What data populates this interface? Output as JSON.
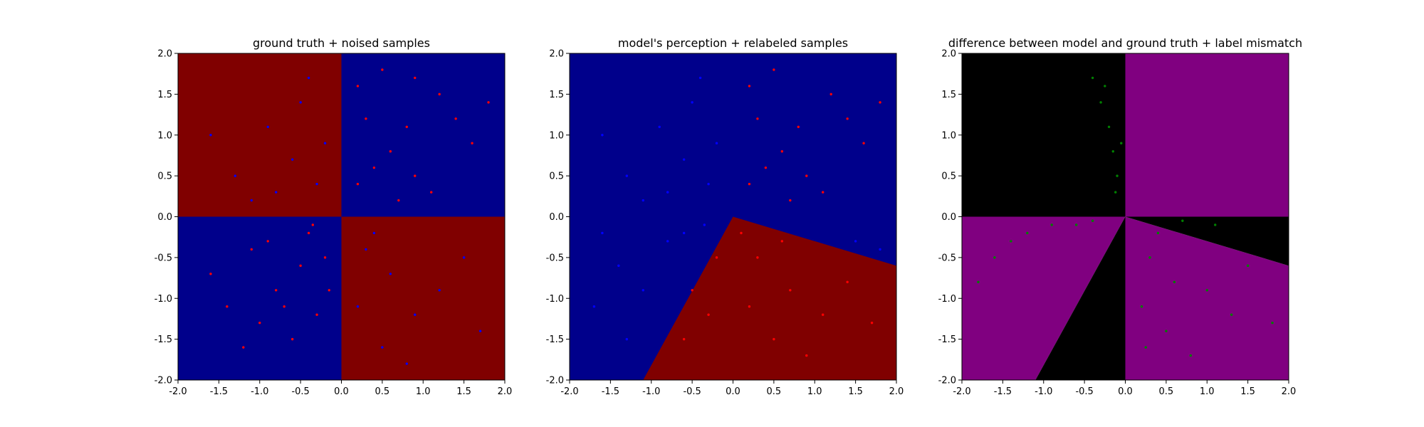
{
  "colors": {
    "dark_red": "#800000",
    "dark_blue": "#00008b",
    "black": "#000000",
    "purple": "#800080",
    "red_point": "#ff0000",
    "blue_point": "#0000ff",
    "green_point": "#008000"
  },
  "chart_data": [
    {
      "type": "scatter",
      "title": "ground truth + noised samples",
      "xlim": [
        -2.0,
        2.0
      ],
      "ylim": [
        -2.0,
        2.0
      ],
      "xticks": [
        -2.0,
        -1.5,
        -1.0,
        -0.5,
        0.0,
        0.5,
        1.0,
        1.5,
        2.0
      ],
      "yticks": [
        -2.0,
        -1.5,
        -1.0,
        -0.5,
        0.0,
        0.5,
        1.0,
        1.5,
        2.0
      ],
      "tick_labels": [
        "-2.0",
        "-1.5",
        "-1.0",
        "-0.5",
        "0.0",
        "0.5",
        "1.0",
        "1.5",
        "2.0"
      ],
      "background_regions": [
        {
          "polygon": [
            [
              -2,
              0
            ],
            [
              0,
              0
            ],
            [
              0,
              2
            ],
            [
              -2,
              2
            ]
          ],
          "color": "dark_red"
        },
        {
          "polygon": [
            [
              0,
              0
            ],
            [
              2,
              0
            ],
            [
              2,
              2
            ],
            [
              0,
              2
            ]
          ],
          "color": "dark_blue"
        },
        {
          "polygon": [
            [
              -2,
              -2
            ],
            [
              0,
              -2
            ],
            [
              0,
              0
            ],
            [
              -2,
              0
            ]
          ],
          "color": "dark_blue"
        },
        {
          "polygon": [
            [
              0,
              -2
            ],
            [
              2,
              -2
            ],
            [
              2,
              0
            ],
            [
              0,
              0
            ]
          ],
          "color": "dark_red"
        }
      ],
      "series": [
        {
          "color": "red_point",
          "points": [
            [
              0.3,
              1.2
            ],
            [
              0.6,
              0.8
            ],
            [
              0.9,
              0.5
            ],
            [
              1.2,
              1.5
            ],
            [
              0.2,
              0.4
            ],
            [
              0.5,
              1.8
            ],
            [
              1.6,
              0.9
            ],
            [
              0.8,
              1.1
            ],
            [
              1.1,
              0.3
            ],
            [
              0.4,
              0.6
            ],
            [
              1.4,
              1.2
            ],
            [
              0.7,
              0.2
            ],
            [
              0.2,
              1.6
            ],
            [
              1.8,
              1.4
            ],
            [
              0.9,
              1.7
            ],
            [
              -0.5,
              -0.6
            ],
            [
              -0.8,
              -0.9
            ],
            [
              -1.1,
              -0.4
            ],
            [
              -0.3,
              -1.2
            ],
            [
              -0.6,
              -1.5
            ],
            [
              -1.4,
              -1.1
            ],
            [
              -0.9,
              -0.3
            ],
            [
              -0.2,
              -0.5
            ],
            [
              -1.6,
              -0.7
            ],
            [
              -0.4,
              -0.2
            ],
            [
              -0.7,
              -1.1
            ],
            [
              -1.2,
              -1.6
            ],
            [
              -0.35,
              -0.1
            ],
            [
              -0.15,
              -0.9
            ],
            [
              -1.0,
              -1.3
            ]
          ]
        },
        {
          "color": "blue_point",
          "points": [
            [
              -0.6,
              0.7
            ],
            [
              -0.9,
              1.1
            ],
            [
              -0.3,
              0.4
            ],
            [
              -1.3,
              0.5
            ],
            [
              -0.5,
              1.4
            ],
            [
              -1.1,
              0.2
            ],
            [
              -0.2,
              0.9
            ],
            [
              -1.6,
              1.0
            ],
            [
              -0.8,
              0.3
            ],
            [
              -0.4,
              1.7
            ],
            [
              0.6,
              -0.7
            ],
            [
              0.9,
              -1.2
            ],
            [
              0.3,
              -0.4
            ],
            [
              1.2,
              -0.9
            ],
            [
              0.5,
              -1.6
            ],
            [
              1.5,
              -0.5
            ],
            [
              0.2,
              -1.1
            ],
            [
              0.8,
              -1.8
            ],
            [
              1.7,
              -1.4
            ],
            [
              0.4,
              -0.2
            ]
          ]
        }
      ]
    },
    {
      "type": "scatter",
      "title": "model's perception + relabeled samples",
      "xlim": [
        -2.0,
        2.0
      ],
      "ylim": [
        -2.0,
        2.0
      ],
      "xticks": [
        -2.0,
        -1.5,
        -1.0,
        -0.5,
        0.0,
        0.5,
        1.0,
        1.5,
        2.0
      ],
      "yticks": [
        -2.0,
        -1.5,
        -1.0,
        -0.5,
        0.0,
        0.5,
        1.0,
        1.5,
        2.0
      ],
      "tick_labels": [
        "-2.0",
        "-1.5",
        "-1.0",
        "-0.5",
        "0.0",
        "0.5",
        "1.0",
        "1.5",
        "2.0"
      ],
      "background_regions": [
        {
          "polygon": [
            [
              -2,
              -2
            ],
            [
              2,
              -2
            ],
            [
              2,
              2
            ],
            [
              -2,
              2
            ]
          ],
          "color": "dark_blue"
        },
        {
          "polygon": [
            [
              0,
              0
            ],
            [
              2,
              -0.6
            ],
            [
              2,
              -2
            ],
            [
              -1.1,
              -2
            ]
          ],
          "color": "dark_red"
        }
      ],
      "series": [
        {
          "color": "red_point",
          "points": [
            [
              0.3,
              1.2
            ],
            [
              0.6,
              0.8
            ],
            [
              0.9,
              0.5
            ],
            [
              1.2,
              1.5
            ],
            [
              0.2,
              0.4
            ],
            [
              0.5,
              1.8
            ],
            [
              1.6,
              0.9
            ],
            [
              0.8,
              1.1
            ],
            [
              1.1,
              0.3
            ],
            [
              0.4,
              0.6
            ],
            [
              1.4,
              1.2
            ],
            [
              0.7,
              0.2
            ],
            [
              0.2,
              1.6
            ],
            [
              1.8,
              1.4
            ],
            [
              0.3,
              -0.5
            ],
            [
              0.7,
              -0.9
            ],
            [
              1.1,
              -1.2
            ],
            [
              0.5,
              -1.5
            ],
            [
              1.4,
              -0.8
            ],
            [
              0.2,
              -1.1
            ],
            [
              0.9,
              -1.7
            ],
            [
              -0.3,
              -1.2
            ],
            [
              -0.5,
              -0.9
            ],
            [
              -0.2,
              -0.5
            ],
            [
              0.6,
              -0.3
            ],
            [
              1.7,
              -1.3
            ],
            [
              -0.6,
              -1.5
            ],
            [
              0.1,
              -0.2
            ]
          ]
        },
        {
          "color": "blue_point",
          "points": [
            [
              -0.6,
              0.7
            ],
            [
              -0.9,
              1.1
            ],
            [
              -0.3,
              0.4
            ],
            [
              -1.3,
              0.5
            ],
            [
              -0.5,
              1.4
            ],
            [
              -1.1,
              0.2
            ],
            [
              -0.2,
              0.9
            ],
            [
              -1.6,
              1.0
            ],
            [
              -0.8,
              0.3
            ],
            [
              -0.4,
              1.7
            ],
            [
              -1.4,
              -0.6
            ],
            [
              -1.1,
              -0.9
            ],
            [
              -0.8,
              -0.3
            ],
            [
              -1.6,
              -0.2
            ],
            [
              -1.7,
              -1.1
            ],
            [
              -0.6,
              -0.2
            ],
            [
              -1.3,
              -1.5
            ],
            [
              1.5,
              -0.3
            ],
            [
              1.8,
              -0.4
            ],
            [
              -0.35,
              -0.1
            ]
          ]
        }
      ]
    },
    {
      "type": "scatter",
      "title": "difference between model and ground truth + label mismatch",
      "xlim": [
        -2.0,
        2.0
      ],
      "ylim": [
        -2.0,
        2.0
      ],
      "xticks": [
        -2.0,
        -1.5,
        -1.0,
        -0.5,
        0.0,
        0.5,
        1.0,
        1.5,
        2.0
      ],
      "yticks": [
        -2.0,
        -1.5,
        -1.0,
        -0.5,
        0.0,
        0.5,
        1.0,
        1.5,
        2.0
      ],
      "tick_labels": [
        "-2.0",
        "-1.5",
        "-1.0",
        "-0.5",
        "0.0",
        "0.5",
        "1.0",
        "1.5",
        "2.0"
      ],
      "background_regions": [
        {
          "polygon": [
            [
              -2,
              0
            ],
            [
              0,
              0
            ],
            [
              0,
              2
            ],
            [
              -2,
              2
            ]
          ],
          "color": "black"
        },
        {
          "polygon": [
            [
              0,
              0
            ],
            [
              2,
              0
            ],
            [
              2,
              2
            ],
            [
              0,
              2
            ]
          ],
          "color": "purple"
        },
        {
          "polygon": [
            [
              -2,
              -2
            ],
            [
              -1.1,
              -2
            ],
            [
              0,
              0
            ],
            [
              -2,
              0
            ]
          ],
          "color": "purple"
        },
        {
          "polygon": [
            [
              -1.1,
              -2
            ],
            [
              0,
              -2
            ],
            [
              0,
              0
            ]
          ],
          "color": "black"
        },
        {
          "polygon": [
            [
              0,
              -2
            ],
            [
              2,
              -2
            ],
            [
              2,
              -0.6
            ],
            [
              0,
              0
            ]
          ],
          "color": "purple"
        },
        {
          "polygon": [
            [
              0,
              0
            ],
            [
              2,
              0
            ],
            [
              2,
              -0.6
            ]
          ],
          "color": "black"
        }
      ],
      "series": [
        {
          "color": "green_point",
          "points": [
            [
              -0.4,
              1.7
            ],
            [
              -0.3,
              1.4
            ],
            [
              -0.2,
              1.1
            ],
            [
              -0.15,
              0.8
            ],
            [
              -0.1,
              0.5
            ],
            [
              -0.25,
              1.6
            ],
            [
              -0.12,
              0.3
            ],
            [
              -0.05,
              0.9
            ],
            [
              -1.4,
              -0.3
            ],
            [
              -1.2,
              -0.2
            ],
            [
              -1.6,
              -0.5
            ],
            [
              -0.9,
              -0.1
            ],
            [
              -1.8,
              -0.8
            ],
            [
              -0.6,
              -0.1
            ],
            [
              -0.4,
              -0.05
            ],
            [
              0.3,
              -0.5
            ],
            [
              0.6,
              -0.8
            ],
            [
              0.2,
              -1.1
            ],
            [
              1.0,
              -0.9
            ],
            [
              0.5,
              -1.4
            ],
            [
              1.5,
              -0.6
            ],
            [
              0.8,
              -1.7
            ],
            [
              1.3,
              -1.2
            ],
            [
              0.4,
              -0.2
            ],
            [
              1.1,
              -0.1
            ],
            [
              0.7,
              -0.05
            ],
            [
              1.8,
              -1.3
            ],
            [
              0.25,
              -1.6
            ]
          ]
        }
      ]
    }
  ]
}
